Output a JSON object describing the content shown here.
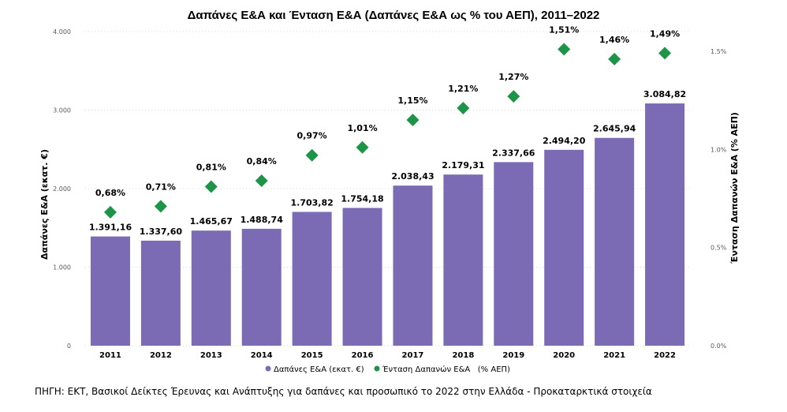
{
  "chart_data": {
    "type": "bar+scatter",
    "title": "Δαπάνες Ε&Α και Ένταση Ε&Α (Δαπάνες Ε&Α ως % του ΑΕΠ), 2011–2022",
    "categories": [
      "2011",
      "2012",
      "2013",
      "2014",
      "2015",
      "2016",
      "2017",
      "2018",
      "2019",
      "2020",
      "2021",
      "2022"
    ],
    "series": [
      {
        "name": "Δαπάνες Ε&Α (εκατ. €)",
        "kind": "bar",
        "axis": "left",
        "color": "#7b6bb5",
        "values": [
          1391.16,
          1337.6,
          1465.67,
          1488.74,
          1703.82,
          1754.18,
          2038.43,
          2179.31,
          2337.66,
          2494.2,
          2645.94,
          3084.82
        ],
        "labels": [
          "1.391,16",
          "1.337,60",
          "1.465,67",
          "1.488,74",
          "1.703,82",
          "1.754,18",
          "2.038,43",
          "2.179,31",
          "2.337,66",
          "2.494,20",
          "2.645,94",
          "3.084,82"
        ]
      },
      {
        "name": "Ένταση Δαπανών Ε&Α   (% ΑΕΠ)",
        "kind": "scatter",
        "marker": "diamond",
        "axis": "right",
        "color": "#1e9448",
        "values": [
          0.68,
          0.71,
          0.81,
          0.84,
          0.97,
          1.01,
          1.15,
          1.21,
          1.27,
          1.51,
          1.46,
          1.49
        ],
        "labels": [
          "0,68%",
          "0,71%",
          "0,81%",
          "0,84%",
          "0,97%",
          "1,01%",
          "1,15%",
          "1,21%",
          "1,27%",
          "1,51%",
          "1,46%",
          "1,49%"
        ]
      }
    ],
    "ylabel": "Δαπάνες Ε&Α (εκατ. €)",
    "ylabel_right": "Ένταση Δαπανών Ε&Α (% ΑΕΠ)",
    "ylim": [
      0,
      4000
    ],
    "ylim_right": [
      0,
      1.6
    ],
    "yticks": [
      0,
      1000,
      2000,
      3000,
      4000
    ],
    "ytick_labels": [
      "0",
      "1.000",
      "2.000",
      "3.000",
      "4.000"
    ],
    "yticks_right": [
      0,
      0.5,
      1.0,
      1.5
    ],
    "ytick_labels_right": [
      "0.0%",
      "0.5%",
      "1.0%",
      "1.5%"
    ],
    "grid": "horizontal dotted",
    "legend": "bottom"
  },
  "source_note": "ΠΗΓΗ: ΕΚΤ, Βασικοί Δείκτες Έρευνας και Ανάπτυξης για δαπάνες και προσωπικό το 2022 στην Ελλάδα - Προκαταρκτικά στοιχεία"
}
